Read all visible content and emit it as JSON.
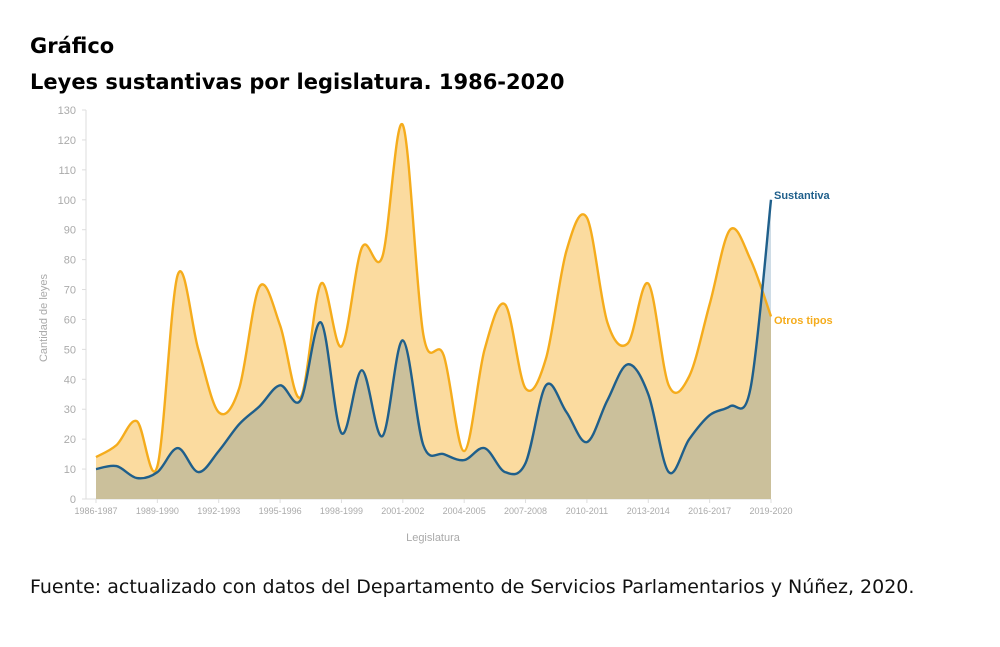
{
  "header": {
    "kicker": "Gráfico",
    "title": "Leyes sustantivas por legislatura.  1986-2020"
  },
  "source": "Fuente: actualizado con datos del Departamento de Servicios Parlamentarios y Núñez, 2020.",
  "colors": {
    "sustantiva_line": "#1f5f8b",
    "otros_line": "#f5ac1c",
    "otros_fill": "#fbd99a",
    "overlap_fill": "#cfbf8e",
    "axis_text": "#aaaaaa",
    "grid": "#e6e6e6"
  },
  "chart_data": {
    "type": "area",
    "xlabel": "Legislatura",
    "ylabel": "Cantidad de leyes",
    "ylim": [
      0,
      130
    ],
    "yticks": [
      0,
      10,
      20,
      30,
      40,
      50,
      60,
      70,
      80,
      90,
      100,
      110,
      120,
      130
    ],
    "x_tick_labels": [
      "1986-1987",
      "1989-1990",
      "1992-1993",
      "1995-1996",
      "1998-1999",
      "2001-2002",
      "2004-2005",
      "2007-2008",
      "2010-2011",
      "2013-2014",
      "2016-2017",
      "2019-2020"
    ],
    "categories": [
      "1986-1987",
      "1987-1988",
      "1988-1989",
      "1989-1990",
      "1990-1991",
      "1991-1992",
      "1992-1993",
      "1993-1994",
      "1994-1995",
      "1995-1996",
      "1996-1997",
      "1997-1998",
      "1998-1999",
      "1999-2000",
      "2000-2001",
      "2001-2002",
      "2002-2003",
      "2003-2004",
      "2004-2005",
      "2005-2006",
      "2006-2007",
      "2007-2008",
      "2008-2009",
      "2009-2010",
      "2010-2011",
      "2011-2012",
      "2012-2013",
      "2013-2014",
      "2014-2015",
      "2015-2016",
      "2016-2017",
      "2017-2018",
      "2018-2019",
      "2019-2020"
    ],
    "grid": false,
    "series": [
      {
        "name": "Sustantiva",
        "values": [
          10,
          11,
          7,
          9,
          17,
          9,
          16,
          25,
          31,
          38,
          33,
          59,
          22,
          43,
          21,
          53,
          18,
          15,
          13,
          17,
          9,
          12,
          38,
          29,
          19,
          33,
          45,
          35,
          9,
          20,
          28,
          31,
          37,
          100
        ]
      },
      {
        "name": "Otros tipos",
        "values": [
          14,
          18,
          26,
          11,
          75,
          50,
          29,
          37,
          71,
          58,
          34,
          72,
          51,
          84,
          81,
          125,
          55,
          48,
          16,
          50,
          65,
          37,
          47,
          83,
          94,
          59,
          52,
          72,
          38,
          41,
          65,
          90,
          80,
          61
        ]
      }
    ]
  }
}
